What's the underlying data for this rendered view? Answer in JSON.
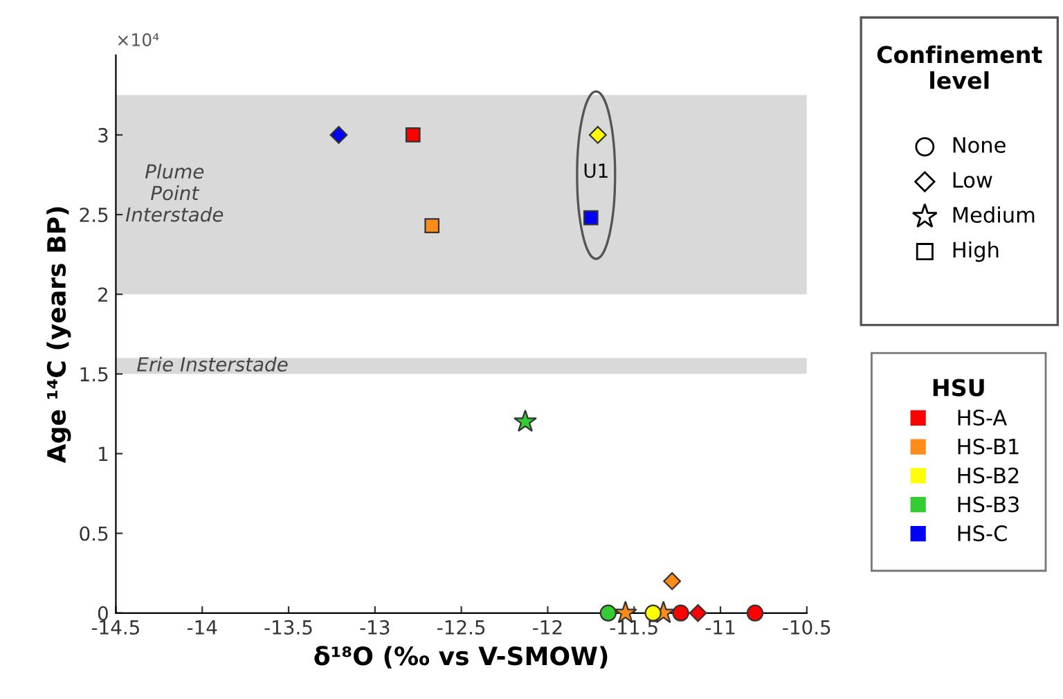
{
  "chart_data": {
    "type": "scatter",
    "xlabel": "δ¹⁸O (‰ vs V-SMOW)",
    "ylabel": "Age ¹⁴C (years BP)",
    "xlim": [
      -14.5,
      -10.5
    ],
    "xticks": [
      -14.5,
      -14,
      -13.5,
      -13,
      -12.5,
      -12,
      -11.5,
      -11,
      -10.5
    ],
    "ylim": [
      0,
      3.5
    ],
    "yticks": [
      0,
      0.5,
      1,
      1.5,
      2,
      2.5,
      3
    ],
    "grid": false,
    "legend": "right",
    "legend_title": "HSU",
    "bands": [
      {
        "axis": "y",
        "from": 2.0,
        "to": 3.25,
        "label": "Plume\nPoint\nInterstade",
        "color": "#d9d9d9"
      },
      {
        "axis": "y",
        "from": 1.5,
        "to": 1.6,
        "label": "Erie Insterstade",
        "color": "#d9d9d9"
      }
    ],
    "annotations": [
      "×10⁴",
      "U1",
      "Confinement level",
      "None",
      "Low",
      "Medium",
      "High"
    ],
    "series": [
      {
        "name": "HS-A",
        "color": "#ff0000",
        "marker": "square",
        "x": [
          -12.78
        ],
        "values": [
          3.0
        ]
      },
      {
        "color": "#ff0000",
        "marker": "circle",
        "x": [
          -11.23,
          -10.8
        ],
        "values": [
          0,
          0
        ]
      },
      {
        "color": "#ff0000",
        "marker": "diamond",
        "x": [
          -11.13
        ],
        "values": [
          0
        ]
      },
      {
        "name": "HS-B1",
        "color": "#ff8c1a",
        "marker": "square",
        "x": [
          -12.67
        ],
        "values": [
          2.43
        ]
      },
      {
        "color": "#ff8c1a",
        "marker": "diamond",
        "x": [
          -11.28
        ],
        "values": [
          0.2
        ]
      },
      {
        "color": "#ff8c1a",
        "marker": "star",
        "x": [
          -11.55,
          -11.33
        ],
        "values": [
          0,
          0
        ]
      },
      {
        "name": "HS-B2",
        "color": "#ffff00",
        "marker": "diamond",
        "x": [
          -11.71
        ],
        "values": [
          3.0
        ]
      },
      {
        "color": "#ffff00",
        "marker": "circle",
        "x": [
          -11.39
        ],
        "values": [
          0
        ]
      },
      {
        "name": "HS-B3",
        "color": "#33cc33",
        "marker": "star",
        "x": [
          -12.13
        ],
        "values": [
          1.2
        ]
      },
      {
        "color": "#33cc33",
        "marker": "circle",
        "x": [
          -11.65
        ],
        "values": [
          0
        ]
      },
      {
        "name": "HS-C",
        "color": "#0000ff",
        "marker": "diamond",
        "x": [
          -13.21
        ],
        "values": [
          3.0
        ]
      },
      {
        "color": "#0000ff",
        "marker": "square",
        "x": [
          -11.75
        ],
        "values": [
          2.48
        ]
      }
    ]
  }
}
